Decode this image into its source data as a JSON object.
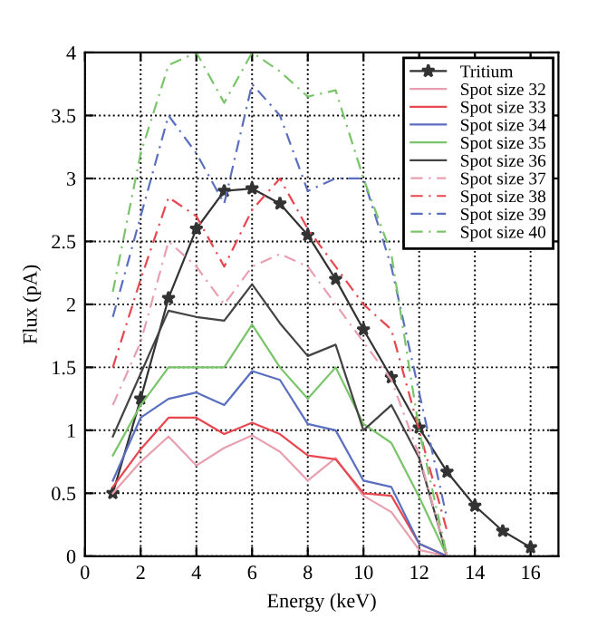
{
  "chart_data": {
    "type": "line",
    "xlabel": "Energy (keV)",
    "ylabel": "Flux (pA)",
    "xlim": [
      0,
      17
    ],
    "ylim": [
      0,
      4
    ],
    "xticks": [
      0,
      2,
      4,
      6,
      8,
      10,
      12,
      14,
      16
    ],
    "yticks": [
      0,
      0.5,
      1,
      1.5,
      2,
      2.5,
      3,
      3.5,
      4
    ],
    "grid": true,
    "legend": "top right",
    "series": [
      {
        "name": "Tritium",
        "color": "#333333",
        "marker": "star",
        "line_style": "solid",
        "x": [
          1,
          2,
          3,
          4,
          5,
          6,
          7,
          8,
          9,
          10,
          11,
          12,
          13,
          14,
          15,
          16
        ],
        "values": [
          0.5,
          1.25,
          2.05,
          2.6,
          2.9,
          2.92,
          2.8,
          2.55,
          2.2,
          1.8,
          1.42,
          1.02,
          0.67,
          0.4,
          0.2,
          0.07
        ]
      },
      {
        "name": "Spot size 32",
        "color": "#e8a0b0",
        "marker": "none",
        "line_style": "solid",
        "x": [
          1,
          2,
          3,
          4,
          5,
          6,
          7,
          8,
          9,
          10,
          11,
          12,
          13
        ],
        "values": [
          0.5,
          0.75,
          0.95,
          0.72,
          0.86,
          0.96,
          0.83,
          0.6,
          0.78,
          0.48,
          0.35,
          0.05,
          0
        ]
      },
      {
        "name": "Spot size 33",
        "color": "#e8474f",
        "marker": "none",
        "line_style": "solid",
        "x": [
          1,
          2,
          3,
          4,
          5,
          6,
          7,
          8,
          9,
          10,
          11,
          12,
          13
        ],
        "values": [
          0.55,
          0.85,
          1.1,
          1.1,
          0.97,
          1.06,
          0.97,
          0.8,
          0.77,
          0.5,
          0.48,
          0.1,
          0
        ]
      },
      {
        "name": "Spot size 34",
        "color": "#5a6fc0",
        "marker": "none",
        "line_style": "solid",
        "x": [
          1,
          2,
          3,
          4,
          5,
          6,
          7,
          8,
          9,
          10,
          11,
          12,
          13
        ],
        "values": [
          0.6,
          1.1,
          1.25,
          1.3,
          1.2,
          1.47,
          1.4,
          1.05,
          1.0,
          0.6,
          0.55,
          0.1,
          0
        ]
      },
      {
        "name": "Spot size 35",
        "color": "#7ac46a",
        "marker": "none",
        "line_style": "solid",
        "x": [
          1,
          2,
          3,
          4,
          5,
          6,
          7,
          8,
          9,
          10,
          11,
          12,
          13
        ],
        "values": [
          0.8,
          1.2,
          1.5,
          1.5,
          1.5,
          1.84,
          1.5,
          1.25,
          1.5,
          1.05,
          0.9,
          0.47,
          0
        ]
      },
      {
        "name": "Spot size 36",
        "color": "#444444",
        "marker": "none",
        "line_style": "solid",
        "x": [
          1,
          2,
          3,
          4,
          5,
          6,
          7,
          8,
          9,
          10,
          11,
          12,
          13
        ],
        "values": [
          0.95,
          1.45,
          1.95,
          1.9,
          1.87,
          2.16,
          1.85,
          1.59,
          1.68,
          1.0,
          1.2,
          0.78,
          0
        ]
      },
      {
        "name": "Spot size 37",
        "color": "#e8a0b0",
        "marker": "none",
        "line_style": "dashed",
        "x": [
          1,
          2,
          3,
          4,
          5,
          6,
          7,
          8,
          9,
          10,
          11,
          12,
          13
        ],
        "values": [
          1.2,
          1.7,
          2.5,
          2.3,
          2.0,
          2.3,
          2.4,
          2.3,
          2.0,
          1.7,
          1.4,
          0.8,
          0
        ]
      },
      {
        "name": "Spot size 38",
        "color": "#e8474f",
        "marker": "none",
        "line_style": "dashed",
        "x": [
          1,
          2,
          3,
          4,
          5,
          6,
          7,
          8,
          9,
          10,
          11,
          12,
          13
        ],
        "values": [
          1.5,
          2.2,
          2.85,
          2.7,
          2.3,
          2.75,
          3.0,
          2.6,
          2.3,
          2.0,
          1.8,
          1.0,
          0.2
        ]
      },
      {
        "name": "Spot size 39",
        "color": "#5a6fc0",
        "marker": "none",
        "line_style": "dashed",
        "x": [
          1,
          2,
          3,
          4,
          5,
          6,
          7,
          8,
          9,
          10,
          11,
          12,
          13
        ],
        "values": [
          1.9,
          2.7,
          3.5,
          3.2,
          2.8,
          3.75,
          3.5,
          2.9,
          3.0,
          3.0,
          2.3,
          1.3,
          0.3
        ]
      },
      {
        "name": "Spot size 40",
        "color": "#7ac46a",
        "marker": "none",
        "line_style": "dashed",
        "x": [
          1,
          2,
          3,
          4,
          5,
          6,
          7,
          8,
          9,
          10,
          11,
          12,
          13
        ],
        "values": [
          2.1,
          3.2,
          3.9,
          4.0,
          3.6,
          4.0,
          3.85,
          3.65,
          3.7,
          3.0,
          2.4,
          1.0,
          0
        ]
      }
    ]
  }
}
